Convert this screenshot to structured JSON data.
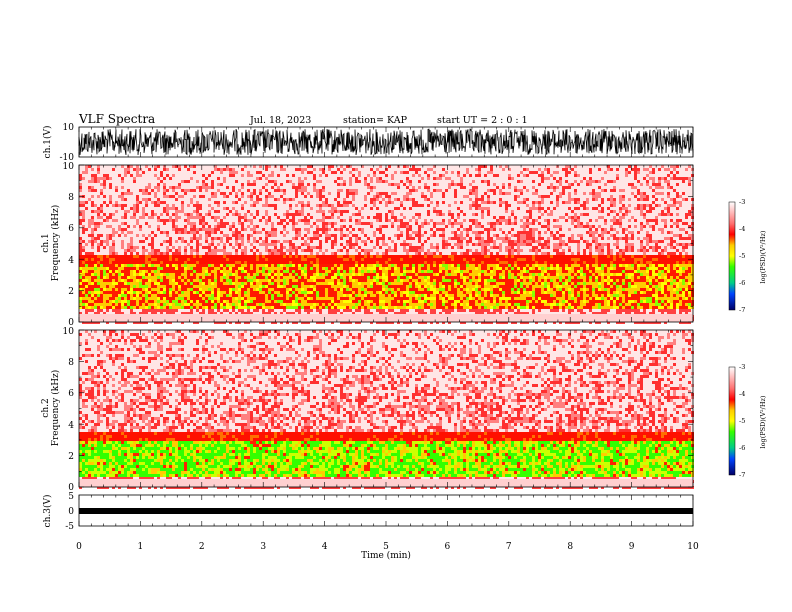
{
  "header": {
    "title": "VLF Spectra",
    "date": "Jul. 18, 2023",
    "station": "station= KAP",
    "start": "start UT =  2 : 0 : 1"
  },
  "chart_data": [
    {
      "type": "line",
      "ylabel": "ch.1(V)",
      "ylim": [
        -10,
        10
      ],
      "yticks": [
        "10",
        "-10"
      ],
      "xlim": [
        0,
        10
      ]
    },
    {
      "type": "heatmap",
      "ylabel_top": "ch.1",
      "ylabel": "Frequency (kHz)",
      "ylim": [
        0,
        10
      ],
      "yticks": [
        "0",
        "2",
        "4",
        "6",
        "8",
        "10"
      ],
      "xlim": [
        0,
        10
      ],
      "band_khz": [
        1.0,
        3.8
      ],
      "colorbar": {
        "label": "log(PSD)(V²/Hz)",
        "range": [
          -7,
          -3
        ],
        "ticks": [
          "-3",
          "-4",
          "-5",
          "-6",
          "-7"
        ]
      }
    },
    {
      "type": "heatmap",
      "ylabel_top": "ch.2",
      "ylabel": "Frequency (kHz)",
      "ylim": [
        0,
        10
      ],
      "yticks": [
        "0",
        "2",
        "4",
        "6",
        "8",
        "10"
      ],
      "xlim": [
        0,
        10
      ],
      "band_khz": [
        0.8,
        3.0
      ],
      "colorbar": {
        "label": "log(PSD)(V²/Hz)",
        "range": [
          -7,
          -3
        ],
        "ticks": [
          "-3",
          "-4",
          "-5",
          "-6",
          "-7"
        ]
      }
    },
    {
      "type": "line",
      "ylabel": "ch.3(V)",
      "ylim": [
        -5,
        5
      ],
      "yticks": [
        "5",
        "0",
        "-5"
      ],
      "xlim": [
        0,
        10
      ],
      "xlabel": "Time (min)",
      "xticks": [
        "0",
        "1",
        "2",
        "3",
        "4",
        "5",
        "6",
        "7",
        "8",
        "9",
        "10"
      ]
    }
  ]
}
